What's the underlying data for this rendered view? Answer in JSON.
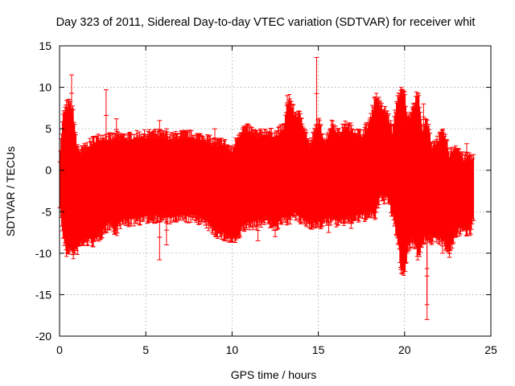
{
  "chart_data": {
    "type": "scatter",
    "style": "points-with-errorbars",
    "title": "Day 323 of 2011, Sidereal Day-to-day VTEC variation (SDTVAR) for receiver whit",
    "xlabel": "GPS time / hours",
    "ylabel": "SDTVAR / TECUs",
    "xlim": [
      0,
      25
    ],
    "ylim": [
      -20,
      15
    ],
    "xticks": [
      0,
      5,
      10,
      15,
      20,
      25
    ],
    "yticks": [
      15,
      10,
      5,
      0,
      -5,
      -10,
      -15,
      -20
    ],
    "grid": true,
    "series_color": "#ff0000",
    "band_envelope": {
      "x": [
        0.0,
        0.2,
        0.4,
        0.6,
        0.8,
        1.0,
        1.2,
        1.5,
        1.8,
        2.0,
        2.5,
        3.0,
        3.2,
        3.5,
        4.0,
        4.5,
        5.0,
        5.5,
        6.0,
        6.5,
        7.0,
        7.5,
        8.0,
        8.5,
        9.0,
        9.5,
        10.0,
        10.3,
        10.6,
        11.0,
        11.5,
        12.0,
        12.5,
        13.0,
        13.3,
        13.6,
        14.0,
        14.5,
        15.0,
        15.4,
        15.8,
        16.2,
        16.6,
        17.0,
        17.5,
        18.0,
        18.3,
        18.6,
        19.0,
        19.3,
        19.6,
        19.8,
        20.0,
        20.2,
        20.5,
        20.8,
        21.0,
        21.3,
        21.6,
        22.0,
        22.3,
        22.6,
        23.0,
        23.4,
        23.8,
        24.0
      ],
      "upper": [
        1.0,
        6.0,
        7.4,
        7.6,
        6.5,
        2.5,
        1.8,
        2.3,
        2.8,
        3.2,
        3.6,
        3.4,
        3.6,
        3.6,
        3.5,
        3.7,
        3.8,
        3.9,
        3.8,
        3.5,
        3.8,
        3.8,
        3.6,
        3.4,
        2.8,
        3.0,
        1.8,
        3.5,
        4.5,
        4.5,
        3.8,
        4.2,
        3.8,
        4.8,
        8.5,
        6.5,
        6.0,
        2.5,
        5.5,
        3.0,
        5.3,
        4.0,
        5.0,
        4.5,
        3.8,
        5.5,
        8.6,
        7.2,
        6.5,
        4.2,
        8.5,
        9.0,
        8.8,
        5.5,
        7.5,
        9.0,
        4.5,
        5.5,
        2.5,
        3.5,
        4.0,
        1.5,
        2.5,
        1.0,
        1.3,
        1.0
      ],
      "lower": [
        -3.5,
        -7.5,
        -9.5,
        -9.0,
        -9.7,
        -9.3,
        -8.5,
        -8.2,
        -8.0,
        -8.3,
        -7.0,
        -6.0,
        -7.3,
        -6.0,
        -5.8,
        -5.6,
        -5.4,
        -5.3,
        -5.4,
        -5.5,
        -5.3,
        -5.3,
        -5.4,
        -6.0,
        -7.0,
        -7.5,
        -8.0,
        -8.0,
        -6.5,
        -6.2,
        -6.0,
        -5.5,
        -6.5,
        -5.5,
        -5.5,
        -5.0,
        -5.6,
        -6.0,
        -6.2,
        -5.8,
        -5.5,
        -6.0,
        -5.5,
        -5.5,
        -5.2,
        -5.0,
        -5.0,
        -3.0,
        -3.0,
        -5.0,
        -8.0,
        -11.5,
        -12.0,
        -9.0,
        -8.0,
        -10.0,
        -8.5,
        -7.5,
        -8.0,
        -7.8,
        -8.5,
        -9.5,
        -7.0,
        -6.8,
        -7.0,
        -5.0
      ]
    },
    "outliers": [
      {
        "x": 0.7,
        "y": 11.5
      },
      {
        "x": 2.7,
        "y": 9.7
      },
      {
        "x": 3.3,
        "y": 6.2
      },
      {
        "x": 5.8,
        "y": 6.0
      },
      {
        "x": 5.8,
        "y": -10.8
      },
      {
        "x": 6.2,
        "y": 5.0
      },
      {
        "x": 6.2,
        "y": -9.0
      },
      {
        "x": 11.5,
        "y": -8.5
      },
      {
        "x": 12.5,
        "y": -8.0
      },
      {
        "x": 13.2,
        "y": 9.0
      },
      {
        "x": 14.9,
        "y": 13.6
      },
      {
        "x": 15.6,
        "y": -7.5
      },
      {
        "x": 16.5,
        "y": 5.5
      },
      {
        "x": 18.5,
        "y": 8.8
      },
      {
        "x": 19.8,
        "y": -12.0
      },
      {
        "x": 20.5,
        "y": 7.3
      },
      {
        "x": 21.1,
        "y": 8.0
      },
      {
        "x": 21.3,
        "y": -16.2
      },
      {
        "x": 21.3,
        "y": -18.0
      },
      {
        "x": 22.6,
        "y": -10.5
      },
      {
        "x": 23.6,
        "y": 3.2
      },
      {
        "x": 22.2,
        "y": -10.0
      },
      {
        "x": 9.0,
        "y": 5.0
      },
      {
        "x": 16.9,
        "y": -7.0
      }
    ]
  }
}
